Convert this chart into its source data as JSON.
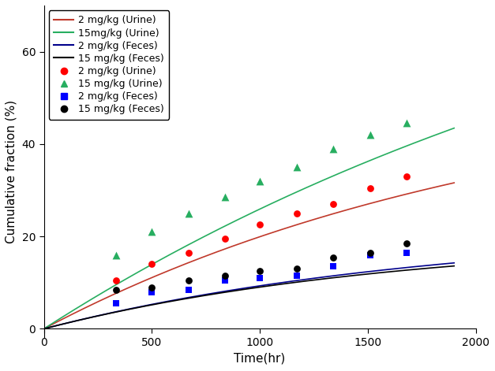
{
  "title": "",
  "xlabel": "Time(hr)",
  "ylabel": "Cumulative fraction (%)",
  "xlim": [
    0,
    2000
  ],
  "ylim": [
    -2,
    70
  ],
  "yticks": [
    0,
    20,
    40,
    60
  ],
  "xticks": [
    0,
    500,
    1000,
    1500,
    2000
  ],
  "curves": {
    "urine_2mgkg": {
      "color": "#c0392b",
      "label": "2 mg/kg (Urine)",
      "A": 55.0,
      "k": 0.00045
    },
    "urine_15mgkg": {
      "color": "#27ae60",
      "label": "15mg/kg (Urine)",
      "A": 100.0,
      "k": 0.0003
    },
    "feces_2mgkg": {
      "color": "#00008B",
      "label": "2 mg/kg (Feces)",
      "A": 22.0,
      "k": 0.00055
    },
    "feces_15mgkg": {
      "color": "#000000",
      "label": "15 mg/kg (Feces)",
      "A": 20.0,
      "k": 0.0006
    }
  },
  "obs_urine_2mgkg": {
    "t": [
      335,
      500,
      670,
      840,
      1000,
      1170,
      1340,
      1510,
      1680
    ],
    "y": [
      10.5,
      14.0,
      16.5,
      19.5,
      22.5,
      25.0,
      27.0,
      30.5,
      33.0
    ],
    "color": "#ff0000",
    "marker": "o",
    "mfc": "#ff0000"
  },
  "obs_urine_15mgkg": {
    "t": [
      335,
      500,
      670,
      840,
      1000,
      1170,
      1340,
      1510,
      1680
    ],
    "y": [
      16.0,
      21.0,
      25.0,
      28.5,
      32.0,
      35.0,
      39.0,
      42.0,
      44.5
    ],
    "color": "#27ae60",
    "marker": "^",
    "mfc": "#27ae60"
  },
  "obs_feces_2mgkg": {
    "t": [
      335,
      500,
      670,
      840,
      1000,
      1170,
      1340,
      1510,
      1680
    ],
    "y": [
      5.5,
      8.0,
      8.5,
      10.5,
      11.0,
      11.5,
      13.5,
      16.0,
      16.5
    ],
    "color": "#0000ff",
    "marker": "s",
    "mfc": "#0000ff"
  },
  "obs_feces_15mgkg": {
    "t": [
      335,
      500,
      670,
      840,
      1000,
      1170,
      1340,
      1510,
      1680
    ],
    "y": [
      8.5,
      9.0,
      10.5,
      11.5,
      12.5,
      13.0,
      15.5,
      16.5,
      18.5
    ],
    "color": "#000000",
    "marker": "o",
    "mfc": "#000000"
  },
  "background_color": "#ffffff",
  "legend_fontsize": 9,
  "axis_fontsize": 11,
  "tick_fontsize": 10
}
